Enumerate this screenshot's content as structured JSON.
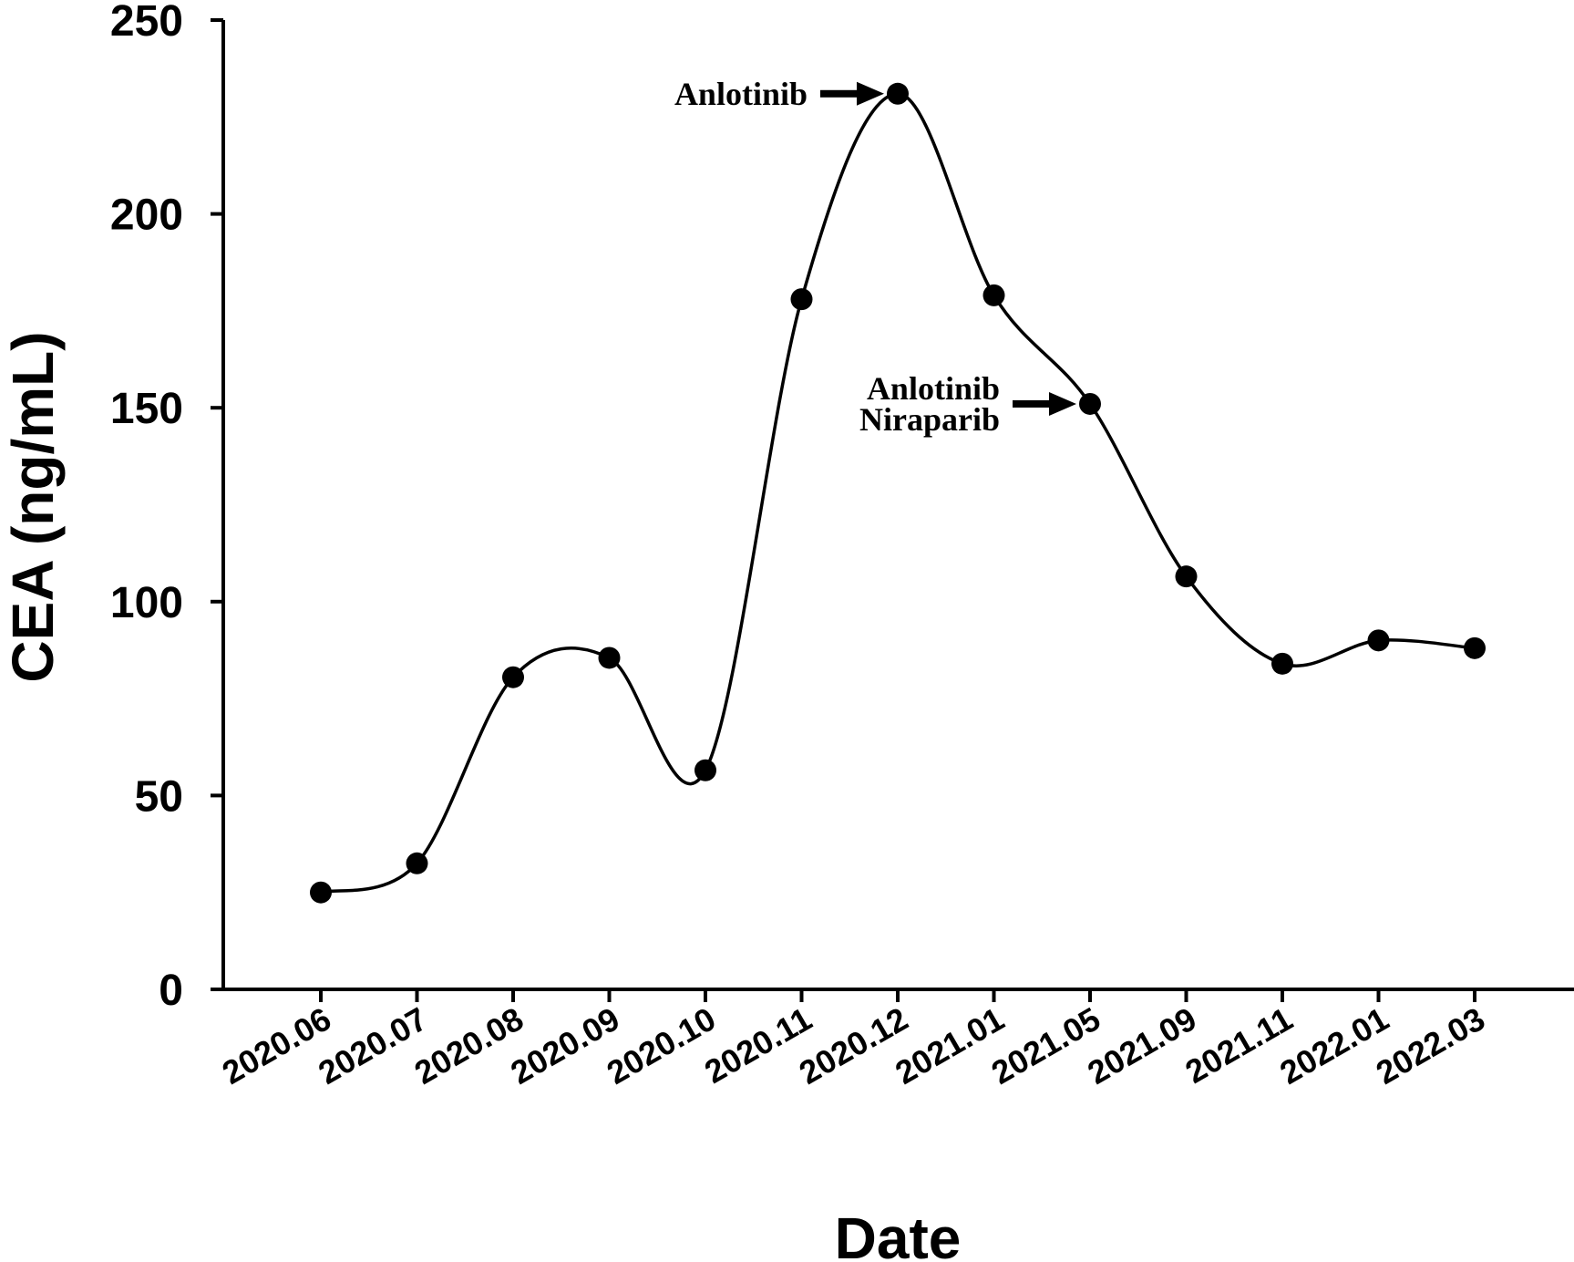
{
  "chart_data": {
    "type": "line",
    "title": "",
    "xlabel": "Date",
    "ylabel": "CEA (ng/mL)",
    "ylim": [
      0,
      250
    ],
    "yticks": [
      0,
      50,
      100,
      150,
      200,
      250
    ],
    "grid": false,
    "legend": "none",
    "smooth": true,
    "categories": [
      "2020.06",
      "2020.07",
      "2020.08",
      "2020.09",
      "2020.10",
      "2020.11",
      "2020.12",
      "2021.01",
      "2021.05",
      "2021.09",
      "2021.11",
      "2022.01",
      "2022.03"
    ],
    "series": [
      {
        "values": [
          25,
          32.5,
          80.5,
          85.5,
          56.5,
          178,
          231,
          179,
          151,
          106.5,
          84,
          90,
          88
        ],
        "color": "#000000"
      }
    ],
    "annotations": [
      {
        "lines": [
          "Anlotinib"
        ],
        "category": "2020.12"
      },
      {
        "lines": [
          "Anlotinib",
          "Niraparib"
        ],
        "category": "2021.05"
      }
    ]
  }
}
